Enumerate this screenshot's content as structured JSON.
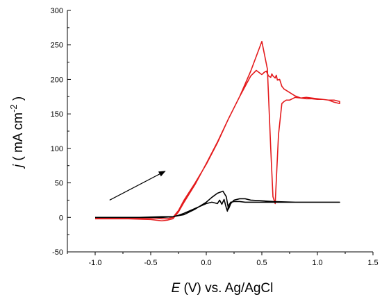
{
  "chart_data": {
    "type": "line",
    "title": "",
    "xlabel": {
      "var": "E",
      "rest": " (V) vs. Ag/AgCl"
    },
    "ylabel": {
      "var": "j",
      "open": " ( mA cm",
      "sup": "-2",
      "close": " )"
    },
    "xlim": [
      -1.25,
      1.5
    ],
    "ylim": [
      -50,
      300
    ],
    "xticks": [
      -1.0,
      -0.5,
      0.0,
      0.5,
      1.0,
      1.5
    ],
    "xtick_labels": [
      "-1.0",
      "-0.5",
      "0.0",
      "0.5",
      "1.0",
      "1.5"
    ],
    "yticks": [
      -50,
      0,
      50,
      100,
      150,
      200,
      250,
      300
    ],
    "ytick_labels": [
      "-50",
      "0",
      "50",
      "100",
      "150",
      "200",
      "250",
      "300"
    ],
    "grid": false,
    "annotations": [
      {
        "type": "arrow",
        "from": [
          -0.87,
          25
        ],
        "to": [
          -0.37,
          67
        ]
      }
    ],
    "series": [
      {
        "color": "#e41a1c",
        "x": [
          -1.0,
          -0.7,
          -0.5,
          -0.45,
          -0.4,
          -0.35,
          -0.3,
          -0.25,
          -0.2,
          -0.1,
          0.0,
          0.1,
          0.2,
          0.3,
          0.4,
          0.45,
          0.5,
          0.52,
          0.54,
          0.56,
          0.58,
          0.59,
          0.6,
          0.62,
          0.63,
          0.64,
          0.66,
          0.68,
          0.7,
          0.75,
          0.8,
          0.85,
          0.9,
          0.95,
          1.0,
          1.05,
          1.1,
          1.15,
          1.2,
          1.2,
          1.15,
          1.1,
          1.05,
          1.0,
          0.95,
          0.9,
          0.85,
          0.8,
          0.75,
          0.72,
          0.7,
          0.68,
          0.65,
          0.62,
          0.6,
          0.58,
          0.55,
          0.5,
          0.4,
          0.3,
          0.2,
          0.1,
          0.0,
          -0.1,
          -0.2,
          -0.25,
          -0.3,
          -0.35,
          -0.4,
          -0.5,
          -0.7,
          -1.0
        ],
        "y": [
          -1,
          -1,
          -1,
          -1,
          -2,
          -2,
          0,
          10,
          25,
          50,
          77,
          108,
          143,
          175,
          205,
          213,
          207,
          210,
          212,
          205,
          203,
          208,
          205,
          202,
          206,
          199,
          200,
          190,
          186,
          181,
          176,
          173,
          172,
          172,
          171,
          171,
          170,
          167,
          165,
          168,
          170,
          170,
          171,
          172,
          173,
          174,
          173,
          174,
          170,
          170,
          168,
          165,
          120,
          20,
          30,
          100,
          215,
          255,
          212,
          175,
          143,
          109,
          78,
          48,
          22,
          8,
          -2,
          -4,
          -5,
          -3,
          -2,
          -2
        ]
      },
      {
        "color": "#000000",
        "x": [
          -1.0,
          -0.8,
          -0.6,
          -0.4,
          -0.3,
          -0.25,
          -0.2,
          -0.1,
          0.0,
          0.05,
          0.1,
          0.12,
          0.14,
          0.16,
          0.18,
          0.19,
          0.2,
          0.22,
          0.25,
          0.3,
          0.35,
          0.4,
          0.6,
          0.8,
          1.0,
          1.2,
          1.2,
          1.0,
          0.8,
          0.6,
          0.4,
          0.35,
          0.3,
          0.25,
          0.22,
          0.2,
          0.18,
          0.15,
          0.1,
          0.05,
          0.0,
          -0.1,
          -0.2,
          -0.3,
          -0.4,
          -0.6,
          -0.8,
          -1.0
        ],
        "y": [
          0,
          0,
          0,
          1,
          1,
          3,
          6,
          13,
          20,
          22,
          20,
          25,
          19,
          26,
          14,
          9,
          17,
          22,
          23,
          23,
          22,
          22,
          22,
          22,
          22,
          22,
          22,
          22,
          22,
          23,
          25,
          27,
          27,
          25,
          20,
          12,
          30,
          38,
          35,
          29,
          22,
          12,
          4,
          1,
          0,
          0,
          0,
          0
        ]
      }
    ]
  }
}
